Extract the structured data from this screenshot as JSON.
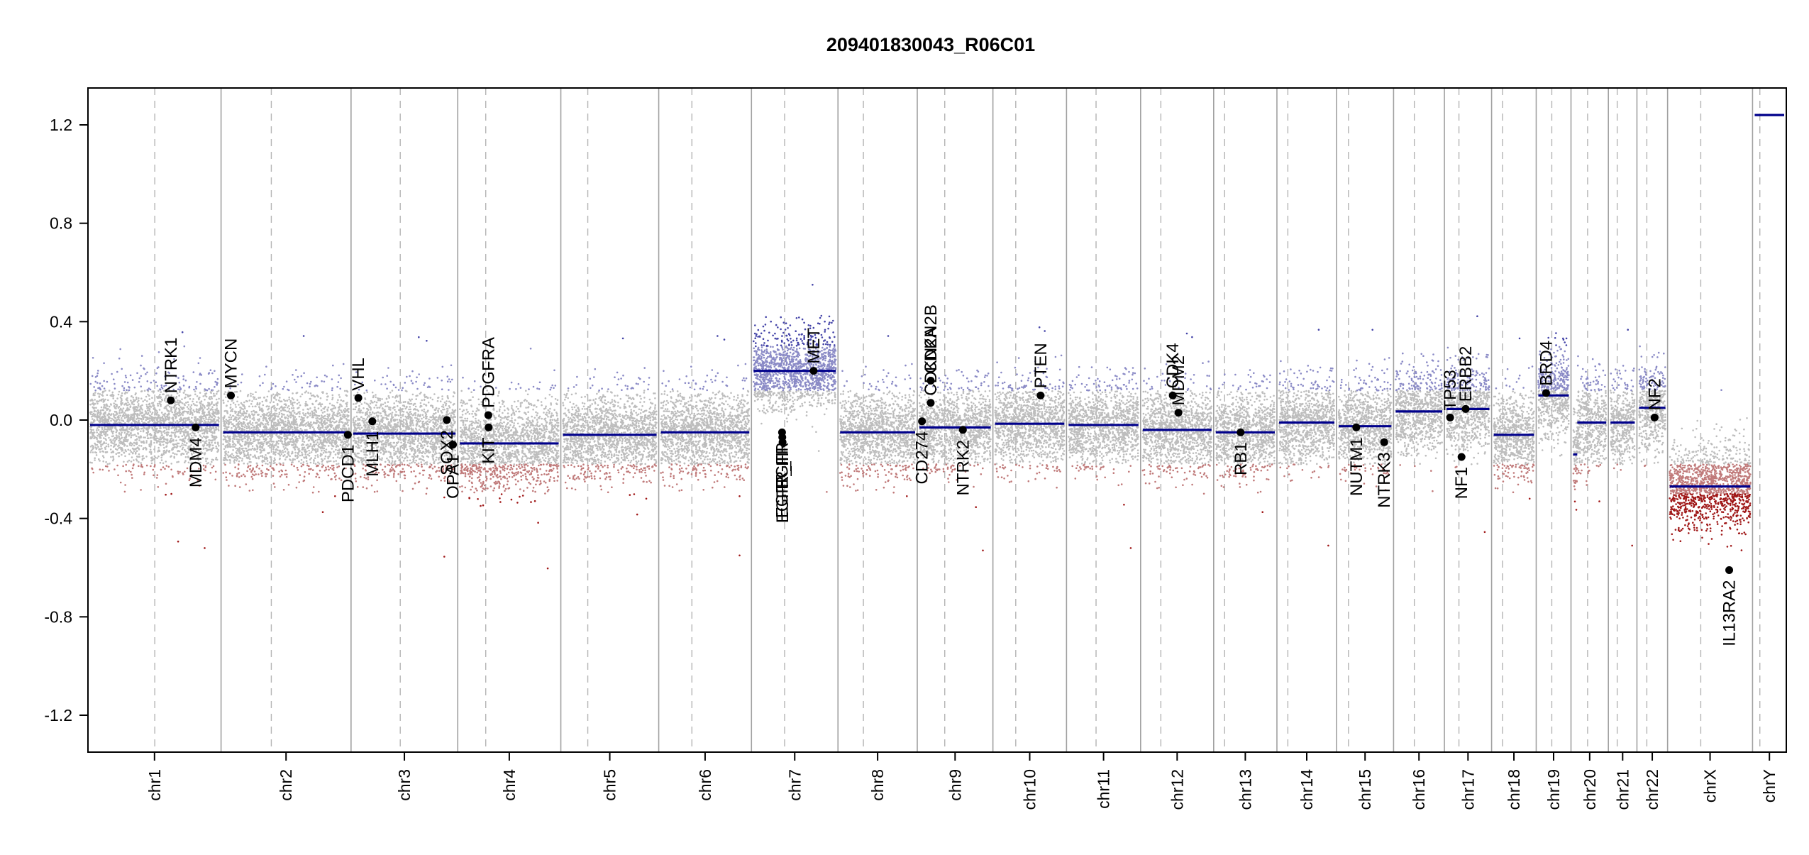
{
  "chart_data": {
    "type": "scatter",
    "title": "209401830043_R06C01",
    "xlabel": "",
    "ylabel": "",
    "ylim": [
      -1.35,
      1.35
    ],
    "yticks": [
      "-1.2",
      "-0.8",
      "-0.4",
      "0.0",
      "0.4",
      "0.8",
      "1.2"
    ],
    "grid": "chromosome boundaries (solid) and centromeres (dashed)",
    "colors": {
      "segment": "#00008b",
      "gain": "#5a5aaa",
      "loss": "#a02020",
      "neutral": "#bdbdbd",
      "boundary": "#a0a0a0",
      "centromere": "#b4b4b4"
    },
    "chromosomes": [
      {
        "name": "chr1",
        "length": 249,
        "centromere": 125,
        "segments": [
          {
            "start": 0,
            "end": 249,
            "mean": -0.02
          }
        ],
        "spread": 0.14
      },
      {
        "name": "chr2",
        "length": 243,
        "centromere": 93,
        "segments": [
          {
            "start": 0,
            "end": 243,
            "mean": -0.05
          }
        ],
        "spread": 0.14
      },
      {
        "name": "chr3",
        "length": 198,
        "centromere": 91,
        "segments": [
          {
            "start": 0,
            "end": 198,
            "mean": -0.055
          }
        ],
        "spread": 0.14
      },
      {
        "name": "chr4",
        "length": 191,
        "centromere": 50,
        "segments": [
          {
            "start": 0,
            "end": 191,
            "mean": -0.095
          }
        ],
        "spread": 0.15
      },
      {
        "name": "chr5",
        "length": 181,
        "centromere": 48,
        "segments": [
          {
            "start": 0,
            "end": 181,
            "mean": -0.06
          }
        ],
        "spread": 0.14
      },
      {
        "name": "chr6",
        "length": 171,
        "centromere": 60,
        "segments": [
          {
            "start": 0,
            "end": 171,
            "mean": -0.05
          }
        ],
        "spread": 0.14
      },
      {
        "name": "chr7",
        "length": 159,
        "centromere": 60,
        "segments": [
          {
            "start": 0,
            "end": 159,
            "mean": 0.2
          }
        ],
        "spread": 0.13
      },
      {
        "name": "chr8",
        "length": 145,
        "centromere": 45,
        "segments": [
          {
            "start": 0,
            "end": 145,
            "mean": -0.05
          }
        ],
        "spread": 0.14
      },
      {
        "name": "chr9",
        "length": 138,
        "centromere": 49,
        "segments": [
          {
            "start": 0,
            "end": 138,
            "mean": -0.03
          }
        ],
        "spread": 0.14
      },
      {
        "name": "chr10",
        "length": 134,
        "centromere": 40,
        "segments": [
          {
            "start": 0,
            "end": 134,
            "mean": -0.015
          }
        ],
        "spread": 0.14
      },
      {
        "name": "chr11",
        "length": 135,
        "centromere": 53,
        "segments": [
          {
            "start": 0,
            "end": 135,
            "mean": -0.02
          }
        ],
        "spread": 0.14
      },
      {
        "name": "chr12",
        "length": 133,
        "centromere": 35,
        "segments": [
          {
            "start": 0,
            "end": 133,
            "mean": -0.04
          }
        ],
        "spread": 0.14
      },
      {
        "name": "chr13",
        "length": 114,
        "centromere": 17,
        "segments": [
          {
            "start": 0,
            "end": 114,
            "mean": -0.05
          }
        ],
        "spread": 0.14
      },
      {
        "name": "chr14",
        "length": 107,
        "centromere": 17,
        "segments": [
          {
            "start": 0,
            "end": 107,
            "mean": -0.01
          }
        ],
        "spread": 0.14
      },
      {
        "name": "chr15",
        "length": 102,
        "centromere": 19,
        "segments": [
          {
            "start": 0,
            "end": 102,
            "mean": -0.025
          }
        ],
        "spread": 0.14
      },
      {
        "name": "chr16",
        "length": 90,
        "centromere": 36,
        "segments": [
          {
            "start": 0,
            "end": 90,
            "mean": 0.035
          }
        ],
        "spread": 0.14
      },
      {
        "name": "chr17",
        "length": 83,
        "centromere": 24,
        "segments": [
          {
            "start": 0,
            "end": 83,
            "mean": 0.045
          }
        ],
        "spread": 0.14
      },
      {
        "name": "chr18",
        "length": 78,
        "centromere": 17,
        "segments": [
          {
            "start": 0,
            "end": 78,
            "mean": -0.06
          }
        ],
        "spread": 0.14
      },
      {
        "name": "chr19",
        "length": 59,
        "centromere": 26,
        "segments": [
          {
            "start": 0,
            "end": 59,
            "mean": 0.1
          }
        ],
        "spread": 0.14
      },
      {
        "name": "chr20",
        "length": 64,
        "centromere": 28,
        "segments": [
          {
            "start": 0,
            "end": 8,
            "mean": -0.14
          },
          {
            "start": 8,
            "end": 64,
            "mean": -0.01
          }
        ],
        "spread": 0.16
      },
      {
        "name": "chr21",
        "length": 47,
        "centromere": 13,
        "segments": [
          {
            "start": 0,
            "end": 47,
            "mean": -0.01
          }
        ],
        "spread": 0.14
      },
      {
        "name": "chr22",
        "length": 51,
        "centromere": 15,
        "segments": [
          {
            "start": 0,
            "end": 51,
            "mean": 0.05
          }
        ],
        "spread": 0.14
      },
      {
        "name": "chrX",
        "length": 156,
        "centromere": 60,
        "segments": [
          {
            "start": 0,
            "end": 156,
            "mean": -0.27
          }
        ],
        "spread": 0.14
      },
      {
        "name": "chrY",
        "length": 57,
        "centromere": 10,
        "segments": [
          {
            "start": 0,
            "end": 57,
            "mean": 1.24
          }
        ],
        "spread": 0.005
      }
    ],
    "genes": [
      {
        "name": "NTRK1",
        "chrom": "chr1",
        "pos": 156,
        "y": 0.08,
        "side": "above"
      },
      {
        "name": "MDM4",
        "chrom": "chr1",
        "pos": 204,
        "y": -0.03,
        "side": "below"
      },
      {
        "name": "MYCN",
        "chrom": "chr2",
        "pos": 15,
        "y": 0.1,
        "side": "above"
      },
      {
        "name": "PDCD1",
        "chrom": "chr2",
        "pos": 241,
        "y": -0.06,
        "side": "below"
      },
      {
        "name": "VHL",
        "chrom": "chr3",
        "pos": 10,
        "y": 0.09,
        "side": "above"
      },
      {
        "name": "MLH1",
        "chrom": "chr3",
        "pos": 37,
        "y": -0.005,
        "side": "below"
      },
      {
        "name": "SOX2",
        "chrom": "chr3",
        "pos": 181,
        "y": 0.0,
        "side": "below"
      },
      {
        "name": "OPA1",
        "chrom": "chr3",
        "pos": 193,
        "y": -0.1,
        "side": "below"
      },
      {
        "name": "PDGFRA",
        "chrom": "chr4",
        "pos": 55,
        "y": 0.02,
        "side": "above"
      },
      {
        "name": "KIT",
        "chrom": "chr4",
        "pos": 55.5,
        "y": -0.03,
        "side": "below"
      },
      {
        "name": "EGFR",
        "chrom": "chr7",
        "pos": 55,
        "y": -0.05,
        "side": "below"
      },
      {
        "name": "EGFR_III",
        "chrom": "chr7",
        "pos": 55.5,
        "y": -0.07,
        "side": "below"
      },
      {
        "name": "EGFR_III",
        "chrom": "chr7",
        "pos": 56,
        "y": -0.09,
        "side": "below"
      },
      {
        "name": "MET",
        "chrom": "chr7",
        "pos": 116,
        "y": 0.2,
        "side": "above"
      },
      {
        "name": "CD274",
        "chrom": "chr9",
        "pos": 5,
        "y": -0.005,
        "side": "below"
      },
      {
        "name": "CDKN2A",
        "chrom": "chr9",
        "pos": 21.9,
        "y": 0.07,
        "side": "above"
      },
      {
        "name": "CDKN2B",
        "chrom": "chr9",
        "pos": 22,
        "y": 0.16,
        "side": "above"
      },
      {
        "name": "NTRK2",
        "chrom": "chr9",
        "pos": 84,
        "y": -0.04,
        "side": "below"
      },
      {
        "name": "PTEN",
        "chrom": "chr10",
        "pos": 88,
        "y": 0.1,
        "side": "above"
      },
      {
        "name": "CDK4",
        "chrom": "chr12",
        "pos": 58,
        "y": 0.1,
        "side": "above"
      },
      {
        "name": "MDM2",
        "chrom": "chr12",
        "pos": 69,
        "y": 0.03,
        "side": "above"
      },
      {
        "name": "RB1",
        "chrom": "chr13",
        "pos": 48,
        "y": -0.05,
        "side": "below"
      },
      {
        "name": "NUTM1",
        "chrom": "chr15",
        "pos": 34,
        "y": -0.03,
        "side": "below"
      },
      {
        "name": "NTRK3",
        "chrom": "chr15",
        "pos": 88,
        "y": -0.09,
        "side": "below"
      },
      {
        "name": "TP53",
        "chrom": "chr17",
        "pos": 7,
        "y": 0.01,
        "side": "above"
      },
      {
        "name": "NF1",
        "chrom": "chr17",
        "pos": 29,
        "y": -0.15,
        "side": "below"
      },
      {
        "name": "ERBB2",
        "chrom": "chr17",
        "pos": 37,
        "y": 0.045,
        "side": "above"
      },
      {
        "name": "BRD4",
        "chrom": "chr19",
        "pos": 15,
        "y": 0.11,
        "side": "above"
      },
      {
        "name": "NF2",
        "chrom": "chr22",
        "pos": 30,
        "y": 0.01,
        "side": "above"
      },
      {
        "name": "IL13RA2",
        "chrom": "chrX",
        "pos": 115,
        "y": -0.61,
        "side": "below"
      }
    ]
  }
}
